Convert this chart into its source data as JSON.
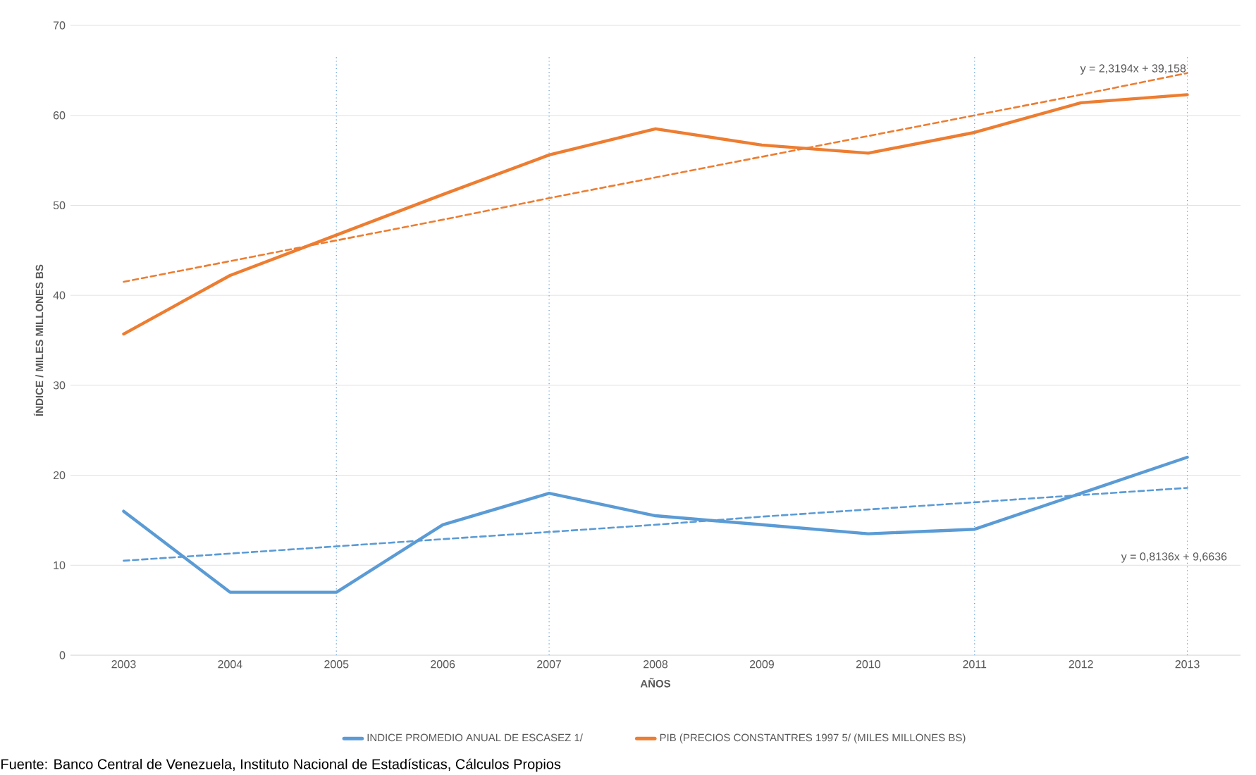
{
  "chart_data": {
    "type": "line",
    "xlabel": "AÑOS",
    "ylabel": "ÍNDICE / MILES MILLONES BS",
    "x": [
      2003,
      2004,
      2005,
      2006,
      2007,
      2008,
      2009,
      2010,
      2011,
      2012,
      2013
    ],
    "xlim": [
      2002.5,
      2013.5
    ],
    "xticks": [
      2003,
      2004,
      2005,
      2006,
      2007,
      2008,
      2009,
      2010,
      2011,
      2012,
      2013
    ],
    "ylim": [
      0,
      70
    ],
    "yticks": [
      0,
      10,
      20,
      30,
      40,
      50,
      60,
      70
    ],
    "grid": "y",
    "legend": "bottom",
    "series": [
      {
        "name": "INDICE PROMEDIO ANUAL DE ESCASEZ 1/",
        "color": "#5b9bd5",
        "values": [
          16,
          7,
          7,
          14.5,
          18,
          15.5,
          14.5,
          13.5,
          14,
          18,
          22
        ]
      },
      {
        "name": "PIB (PRECIOS CONSTANTRES 1997 5/ (MILES MILLONES BS)",
        "color": "#ed7d31",
        "values": [
          35.7,
          42.2,
          46.7,
          51.2,
          55.6,
          58.5,
          56.7,
          55.8,
          58.1,
          61.4,
          62.3
        ]
      },
      {
        "type": "line",
        "values": [
          10.5,
          11.3,
          12.1,
          12.9,
          13.7,
          14.5,
          15.4,
          16.2,
          17,
          17.8,
          18.6
        ],
        "color": "#5b9bd5",
        "line_style": "dashed"
      },
      {
        "type": "line",
        "values": [
          41.5,
          43.8,
          46.1,
          48.4,
          50.8,
          53.1,
          55.4,
          57.7,
          60,
          62.3,
          64.7
        ],
        "color": "#ed7d31",
        "line_style": "dashed"
      }
    ],
    "ref_lines": [
      {
        "axis": "x",
        "value": 2005,
        "color": "#5b9bd5",
        "line_style": "dotted"
      },
      {
        "axis": "x",
        "value": 2007,
        "color": "#5b9bd5",
        "line_style": "dotted"
      },
      {
        "axis": "x",
        "value": 2011,
        "color": "#5b9bd5",
        "line_style": "dotted"
      },
      {
        "axis": "x",
        "value": 2013,
        "color": "#5b9bd5",
        "line_style": "dotted"
      }
    ],
    "annotations": [
      "y = 2,3194x + 39,158",
      "y = 0,8136x + 9,6636",
      "Fuente: Banco Central de Venezuela, Instituto Nacional de Estadísticas, Cálculos Propios"
    ]
  }
}
